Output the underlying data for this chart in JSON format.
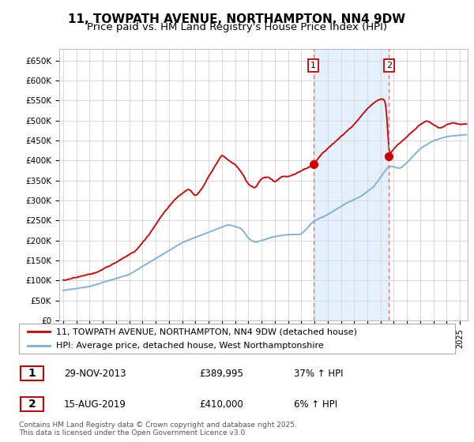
{
  "title": "11, TOWPATH AVENUE, NORTHAMPTON, NN4 9DW",
  "subtitle": "Price paid vs. HM Land Registry's House Price Index (HPI)",
  "title_fontsize": 11,
  "subtitle_fontsize": 9.5,
  "ylabel_ticks": [
    "£0",
    "£50K",
    "£100K",
    "£150K",
    "£200K",
    "£250K",
    "£300K",
    "£350K",
    "£400K",
    "£450K",
    "£500K",
    "£550K",
    "£600K",
    "£650K"
  ],
  "ytick_values": [
    0,
    50000,
    100000,
    150000,
    200000,
    250000,
    300000,
    350000,
    400000,
    450000,
    500000,
    550000,
    600000,
    650000
  ],
  "ylim": [
    0,
    680000
  ],
  "red_color": "#cc0000",
  "blue_color": "#7bafd4",
  "vline_color": "#e87070",
  "background_color": "#ffffff",
  "grid_color": "#d8d8d8",
  "shade_color": "#ddeeff",
  "legend1": "11, TOWPATH AVENUE, NORTHAMPTON, NN4 9DW (detached house)",
  "legend2": "HPI: Average price, detached house, West Northamptonshire",
  "annotation1_num": "1",
  "annotation1_date": "29-NOV-2013",
  "annotation1_price": "£389,995",
  "annotation1_hpi": "37% ↑ HPI",
  "annotation2_num": "2",
  "annotation2_date": "15-AUG-2019",
  "annotation2_price": "£410,000",
  "annotation2_hpi": "6% ↑ HPI",
  "footnote": "Contains HM Land Registry data © Crown copyright and database right 2025.\nThis data is licensed under the Open Government Licence v3.0.",
  "vline1_x": 2013.917,
  "vline2_x": 2019.625,
  "marker1_x": 2013.917,
  "marker1_y": 389995,
  "marker2_x": 2019.625,
  "marker2_y": 410000,
  "xlim_min": 1995.0,
  "xlim_max": 2025.5
}
